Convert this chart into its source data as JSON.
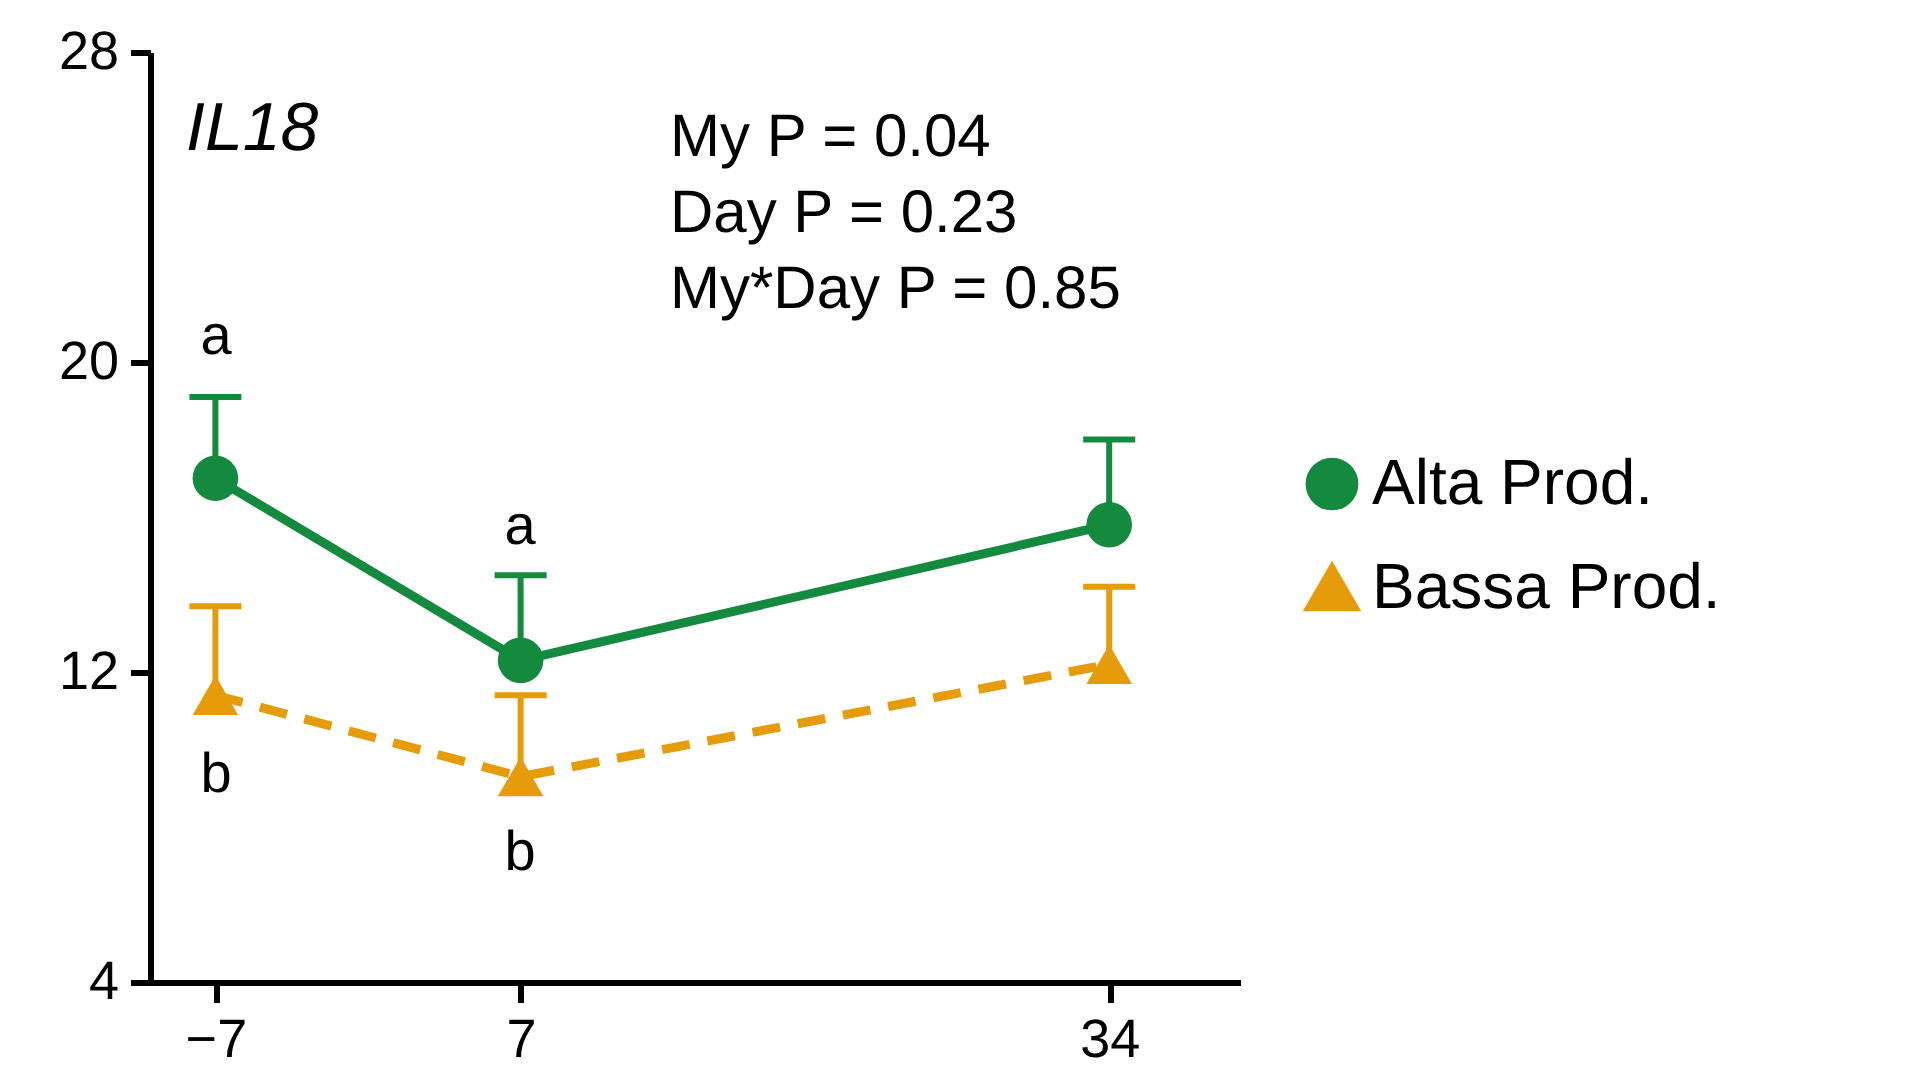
{
  "chart_data": {
    "type": "line",
    "title": "IL18",
    "x": [
      -7,
      7,
      34
    ],
    "xlim": [
      -10,
      40
    ],
    "xticks": [
      -7,
      7,
      34
    ],
    "ylim": [
      4,
      28
    ],
    "yticks": [
      4,
      12,
      20,
      28
    ],
    "grid": false,
    "legend": "right",
    "series": [
      {
        "name": "Alta Prod.",
        "color": "#138a3e",
        "values": [
          17.0,
          12.3,
          15.8
        ],
        "errors": [
          [
            17.0,
            19.1
          ],
          [
            12.3,
            14.5
          ],
          [
            15.8,
            18.0
          ]
        ],
        "marker": "circle",
        "line_style": "solid"
      },
      {
        "name": "Bassa Prod.",
        "color": "#e69c08",
        "values": [
          11.4,
          9.3,
          12.2
        ],
        "errors": [
          [
            11.4,
            13.7
          ],
          [
            9.3,
            11.4
          ],
          [
            12.2,
            14.2
          ]
        ],
        "marker": "triangle",
        "line_style": "dashed"
      }
    ],
    "annotations": [
      "My P = 0.04",
      "Day P = 0.23",
      "My*Day P = 0.85",
      "a",
      "a",
      "b",
      "b"
    ]
  }
}
